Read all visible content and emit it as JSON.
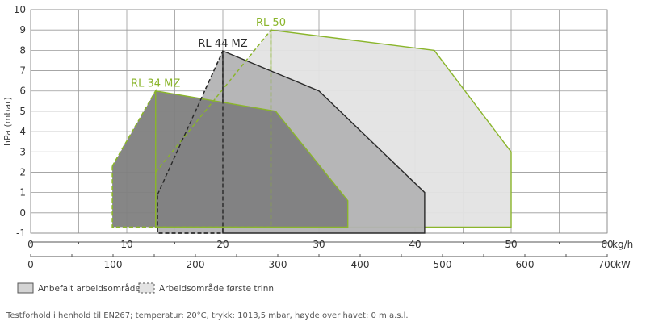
{
  "chart_data": {
    "type": "area",
    "ylabel": "hPa (mbar)",
    "y_ticks": [
      "-1",
      "0",
      "1",
      "2",
      "3",
      "4",
      "5",
      "6",
      "7",
      "8",
      "9",
      "10"
    ],
    "ylim": [
      -1,
      10
    ],
    "x_axis_kg": {
      "unit": "kg/h",
      "range": [
        0,
        60
      ],
      "ticks": [
        "0",
        "10",
        "20",
        "30",
        "40",
        "50",
        "60"
      ]
    },
    "x_axis_kw": {
      "unit": "kW",
      "range": [
        0,
        700
      ],
      "ticks": [
        "0",
        "100",
        "200",
        "300",
        "400",
        "500",
        "600",
        "700"
      ]
    },
    "series": [
      {
        "name": "RL 50",
        "color": "#8ab52b",
        "fill": "#e3e3e3",
        "recommended": [
          [
            25,
            9
          ],
          [
            42,
            8
          ],
          [
            50,
            3
          ],
          [
            50,
            -0.7
          ],
          [
            25,
            -0.7
          ],
          [
            25,
            9
          ]
        ],
        "first_stage": [
          [
            13,
            2
          ],
          [
            25,
            9
          ],
          [
            25,
            -0.7
          ],
          [
            13,
            -0.7
          ],
          [
            13,
            2
          ]
        ]
      },
      {
        "name": "RL 44 MZ",
        "color": "#2a2a2a",
        "fill": "#b3b3b4",
        "recommended": [
          [
            20,
            7.97
          ],
          [
            30,
            6
          ],
          [
            41,
            1
          ],
          [
            41,
            -1
          ],
          [
            20,
            -1
          ],
          [
            20,
            7.97
          ]
        ],
        "first_stage": [
          [
            13.2,
            0.9
          ],
          [
            20,
            7.97
          ],
          [
            20,
            -1
          ],
          [
            13.2,
            -1
          ],
          [
            13.2,
            0.9
          ]
        ]
      },
      {
        "name": "RL 34 MZ",
        "color": "#8ab52b",
        "fill": "#7f7f80",
        "recommended": [
          [
            13,
            6
          ],
          [
            25.5,
            5
          ],
          [
            33,
            0.6
          ],
          [
            33,
            -0.7
          ],
          [
            13,
            -0.7
          ],
          [
            13,
            6
          ]
        ],
        "first_stage": [
          [
            8.5,
            2.3
          ],
          [
            13,
            6
          ],
          [
            13,
            -0.7
          ],
          [
            8.5,
            -0.7
          ],
          [
            8.5,
            2.3
          ]
        ]
      }
    ],
    "legend": [
      "Anbefalt arbeidsområde",
      "Arbeidsområde første trinn"
    ]
  },
  "footnote": "Testforhold i henhold til EN267; temperatur: 20°C, trykk: 1013,5 mbar, høyde over havet: 0 m a.s.l."
}
